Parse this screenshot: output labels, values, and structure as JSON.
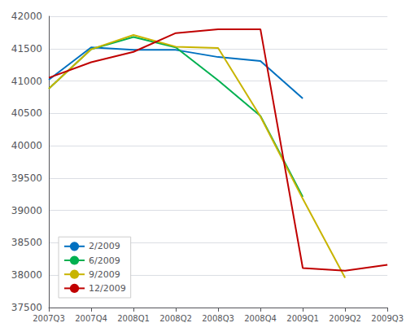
{
  "chart_data": {
    "type": "line",
    "categories": [
      "2007Q3",
      "2007Q4",
      "2008Q1",
      "2008Q2",
      "2008Q3",
      "2008Q4",
      "2009Q1",
      "2009Q2",
      "2009Q3"
    ],
    "series": [
      {
        "name": "2/2009",
        "color": "#0070C0",
        "values": [
          41020,
          41520,
          41480,
          41480,
          41370,
          41310,
          40730,
          null,
          null
        ]
      },
      {
        "name": "6/2009",
        "color": "#00B050",
        "values": [
          40880,
          41490,
          41680,
          41520,
          41010,
          40460,
          39210,
          null,
          null
        ]
      },
      {
        "name": "9/2009",
        "color": "#C8B400",
        "values": [
          40880,
          41490,
          41710,
          41530,
          41510,
          40450,
          39180,
          37960,
          null
        ]
      },
      {
        "name": "12/2009",
        "color": "#C00000",
        "values": [
          41050,
          41290,
          41450,
          41740,
          41800,
          41800,
          38110,
          38070,
          38160
        ]
      }
    ],
    "ylim": [
      37500,
      42000
    ],
    "yticks": [
      37500,
      38000,
      38500,
      39000,
      39500,
      40000,
      40500,
      41000,
      41500,
      42000
    ],
    "grid": true,
    "legend": "lower left"
  }
}
